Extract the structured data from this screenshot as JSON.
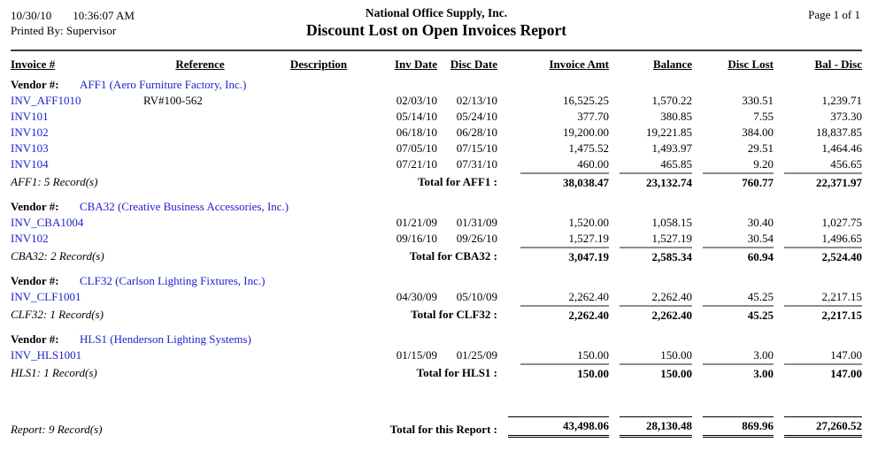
{
  "header": {
    "date": "10/30/10",
    "time": "10:36:07 AM",
    "printed_by": "Printed By: Supervisor",
    "company": "National Office Supply, Inc.",
    "title": "Discount Lost on Open Invoices Report",
    "page": "Page 1 of 1"
  },
  "colors": {
    "link_blue": "#2020cd",
    "rule_gray": "#8c8c8c",
    "rule_dark": "#3c3c3c"
  },
  "table": {
    "columns": [
      "Invoice #",
      "Reference",
      "Description",
      "Inv Date",
      "Disc Date",
      "Invoice Amt",
      "Balance",
      "Disc Lost",
      "Bal - Disc"
    ],
    "vendor_label": "Vendor #:",
    "groups": [
      {
        "vendor": "AFF1 (Aero Furniture Factory, Inc.)",
        "rows": [
          {
            "invoice": "INV_AFF1010",
            "reference": "RV#100-562",
            "description": "",
            "inv_date": "02/03/10",
            "disc_date": "02/13/10",
            "invoice_amt": "16,525.25",
            "balance": "1,570.22",
            "disc_lost": "330.51",
            "bal_disc": "1,239.71"
          },
          {
            "invoice": "INV101",
            "reference": "",
            "description": "",
            "inv_date": "05/14/10",
            "disc_date": "05/24/10",
            "invoice_amt": "377.70",
            "balance": "380.85",
            "disc_lost": "7.55",
            "bal_disc": "373.30"
          },
          {
            "invoice": "INV102",
            "reference": "",
            "description": "",
            "inv_date": "06/18/10",
            "disc_date": "06/28/10",
            "invoice_amt": "19,200.00",
            "balance": "19,221.85",
            "disc_lost": "384.00",
            "bal_disc": "18,837.85"
          },
          {
            "invoice": "INV103",
            "reference": "",
            "description": "",
            "inv_date": "07/05/10",
            "disc_date": "07/15/10",
            "invoice_amt": "1,475.52",
            "balance": "1,493.97",
            "disc_lost": "29.51",
            "bal_disc": "1,464.46"
          },
          {
            "invoice": "INV104",
            "reference": "",
            "description": "",
            "inv_date": "07/21/10",
            "disc_date": "07/31/10",
            "invoice_amt": "460.00",
            "balance": "465.85",
            "disc_lost": "9.20",
            "bal_disc": "456.65"
          }
        ],
        "record_count": "AFF1: 5 Record(s)",
        "total_label": "Total for AFF1 :",
        "total": {
          "invoice_amt": "38,038.47",
          "balance": "23,132.74",
          "disc_lost": "760.77",
          "bal_disc": "22,371.97"
        }
      },
      {
        "vendor": "CBA32 (Creative Business Accessories, Inc.)",
        "rows": [
          {
            "invoice": "INV_CBA1004",
            "reference": "",
            "description": "",
            "inv_date": "01/21/09",
            "disc_date": "01/31/09",
            "invoice_amt": "1,520.00",
            "balance": "1,058.15",
            "disc_lost": "30.40",
            "bal_disc": "1,027.75"
          },
          {
            "invoice": "INV102",
            "reference": "",
            "description": "",
            "inv_date": "09/16/10",
            "disc_date": "09/26/10",
            "invoice_amt": "1,527.19",
            "balance": "1,527.19",
            "disc_lost": "30.54",
            "bal_disc": "1,496.65"
          }
        ],
        "record_count": "CBA32: 2 Record(s)",
        "total_label": "Total for CBA32 :",
        "total": {
          "invoice_amt": "3,047.19",
          "balance": "2,585.34",
          "disc_lost": "60.94",
          "bal_disc": "2,524.40"
        }
      },
      {
        "vendor": "CLF32 (Carlson Lighting Fixtures, Inc.)",
        "rows": [
          {
            "invoice": "INV_CLF1001",
            "reference": "",
            "description": "",
            "inv_date": "04/30/09",
            "disc_date": "05/10/09",
            "invoice_amt": "2,262.40",
            "balance": "2,262.40",
            "disc_lost": "45.25",
            "bal_disc": "2,217.15"
          }
        ],
        "record_count": "CLF32: 1 Record(s)",
        "total_label": "Total for CLF32 :",
        "total": {
          "invoice_amt": "2,262.40",
          "balance": "2,262.40",
          "disc_lost": "45.25",
          "bal_disc": "2,217.15"
        }
      },
      {
        "vendor": "HLS1 (Henderson Lighting Systems)",
        "rows": [
          {
            "invoice": "INV_HLS1001",
            "reference": "",
            "description": "",
            "inv_date": "01/15/09",
            "disc_date": "01/25/09",
            "invoice_amt": "150.00",
            "balance": "150.00",
            "disc_lost": "3.00",
            "bal_disc": "147.00"
          }
        ],
        "record_count": "HLS1: 1 Record(s)",
        "total_label": "Total for HLS1 :",
        "total": {
          "invoice_amt": "150.00",
          "balance": "150.00",
          "disc_lost": "3.00",
          "bal_disc": "147.00"
        }
      }
    ],
    "report_total": {
      "record_count": "Report: 9 Record(s)",
      "label": "Total for this Report :",
      "invoice_amt": "43,498.06",
      "balance": "28,130.48",
      "disc_lost": "869.96",
      "bal_disc": "27,260.52"
    }
  }
}
